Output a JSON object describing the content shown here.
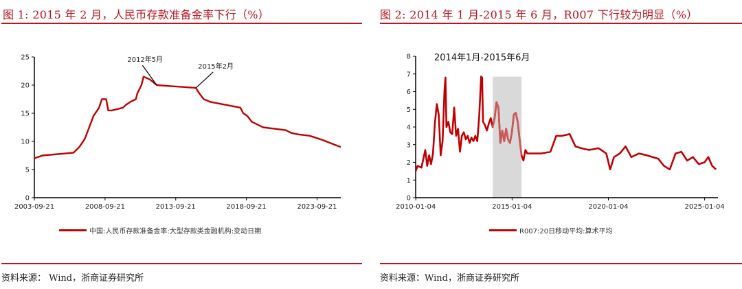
{
  "figure1": {
    "title": "图 1:  2015 年 2 月，人民币存款准备金率下行（%）",
    "source": "资料来源： Wind，浙商证券研究所",
    "legend": "中国:人民币存款准备金率:大型存款类金融机构:变动日期"
  },
  "figure2": {
    "title": "图 2:  2014 年 1 月-2015 年 6 月，R007 下行较为明显（%）",
    "source": "资料来源：Wind，浙商证券研究所",
    "legend": "R007:20日移动平均:算术平均"
  },
  "colors": {
    "accent": "#c0141c",
    "series": "#c00000",
    "highlight_band": "#d9d9d9",
    "highlighted_series": "#c85a5a"
  },
  "chart_data": [
    {
      "type": "line",
      "title": "2015 年 2 月，人民币存款准备金率下行（%）",
      "xlabel": "",
      "ylabel": "%",
      "ylim": [
        0,
        25
      ],
      "yticks": [
        0,
        5,
        10,
        15,
        20,
        25
      ],
      "xticks": [
        "2003-09-21",
        "2008-09-21",
        "2013-09-21",
        "2018-09-21",
        "2023-09-21"
      ],
      "xrange": [
        2003.72,
        2025.4
      ],
      "grid": false,
      "legend_position": "bottom",
      "annotations": [
        {
          "text": "2012年5月",
          "x": 2012.38,
          "y": 20.0,
          "label_x": 2010.3,
          "label_y": 24.5
        },
        {
          "text": "2015年2月",
          "x": 2015.15,
          "y": 19.5,
          "label_x": 2015.3,
          "label_y": 23.3
        }
      ],
      "series": [
        {
          "name": "中国:人民币存款准备金率:大型存款类金融机构:变动日期",
          "x": [
            2003.72,
            2004.3,
            2006.5,
            2006.9,
            2007.3,
            2007.6,
            2007.9,
            2008.3,
            2008.5,
            2008.8,
            2008.95,
            2009.2,
            2010.0,
            2010.2,
            2010.5,
            2010.9,
            2011.0,
            2011.3,
            2011.45,
            2011.9,
            2012.38,
            2015.15,
            2015.4,
            2015.7,
            2016.2,
            2018.3,
            2018.5,
            2018.8,
            2019.1,
            2019.9,
            2021.5,
            2021.9,
            2022.4,
            2023.2,
            2023.5,
            2024.1,
            2025.4
          ],
          "y": [
            7.0,
            7.5,
            8.0,
            9.0,
            10.5,
            12.5,
            14.5,
            16.0,
            17.5,
            17.5,
            15.5,
            15.5,
            16.0,
            16.5,
            17.0,
            17.5,
            18.5,
            20.0,
            21.5,
            21.0,
            20.0,
            19.5,
            18.5,
            17.5,
            17.0,
            16.0,
            15.0,
            14.5,
            13.5,
            12.5,
            12.0,
            11.5,
            11.25,
            11.0,
            10.75,
            10.25,
            9.0
          ]
        }
      ]
    },
    {
      "type": "line",
      "title": "2014 年 1 月-2015 年 6 月，R007 下行较为明显（%）",
      "subtitle": "2014年1月-2015年6月",
      "xlabel": "",
      "ylabel": "%",
      "ylim": [
        0,
        8
      ],
      "yticks": [
        0,
        1,
        2,
        3,
        4,
        5,
        6,
        7,
        8
      ],
      "xticks": [
        "2010-01-04",
        "2015-01-04",
        "2020-01-04",
        "2025-01-04"
      ],
      "xrange": [
        2010.0,
        2025.7
      ],
      "grid": false,
      "legend_position": "bottom",
      "highlight_band": {
        "x_start": 2014.0,
        "x_end": 2015.5,
        "y_top": 6.85
      },
      "series": [
        {
          "name": "R007:20日移动平均:算术平均",
          "x": [
            2010.0,
            2010.1,
            2010.3,
            2010.5,
            2010.6,
            2010.7,
            2010.8,
            2010.9,
            2011.0,
            2011.1,
            2011.2,
            2011.3,
            2011.4,
            2011.5,
            2011.55,
            2011.6,
            2011.7,
            2011.8,
            2011.9,
            2012.0,
            2012.1,
            2012.2,
            2012.3,
            2012.4,
            2012.5,
            2012.6,
            2012.7,
            2012.8,
            2012.9,
            2013.0,
            2013.1,
            2013.2,
            2013.3,
            2013.4,
            2013.45,
            2013.5,
            2013.6,
            2013.7,
            2013.8,
            2013.9,
            2014.0,
            2014.1,
            2014.2,
            2014.3,
            2014.4,
            2014.5,
            2014.6,
            2014.7,
            2014.8,
            2014.9,
            2015.0,
            2015.1,
            2015.2,
            2015.3,
            2015.4,
            2015.5,
            2015.6,
            2015.7,
            2015.8,
            2016.0,
            2016.5,
            2017.0,
            2017.3,
            2017.6,
            2018.0,
            2018.3,
            2018.6,
            2019.0,
            2019.5,
            2019.9,
            2020.1,
            2020.3,
            2020.6,
            2020.9,
            2021.2,
            2021.6,
            2022.0,
            2022.3,
            2022.6,
            2022.9,
            2023.2,
            2023.5,
            2023.8,
            2024.1,
            2024.4,
            2024.7,
            2025.0,
            2025.2,
            2025.4,
            2025.6
          ],
          "y": [
            1.5,
            1.8,
            1.7,
            2.7,
            1.8,
            2.4,
            1.9,
            2.5,
            4.2,
            5.3,
            4.7,
            2.4,
            3.2,
            6.1,
            6.8,
            4.0,
            4.3,
            3.7,
            3.6,
            5.1,
            3.5,
            3.9,
            2.6,
            3.5,
            3.7,
            3.3,
            3.5,
            3.1,
            3.4,
            3.2,
            3.5,
            3.2,
            4.6,
            6.85,
            6.8,
            4.3,
            4.1,
            3.8,
            4.2,
            4.5,
            4.0,
            4.5,
            5.4,
            5.1,
            3.1,
            3.8,
            3.2,
            3.9,
            3.3,
            3.1,
            3.7,
            4.7,
            4.8,
            4.3,
            3.3,
            2.4,
            2.1,
            2.7,
            2.5,
            2.5,
            2.5,
            2.6,
            3.5,
            3.5,
            3.6,
            2.9,
            2.8,
            2.7,
            2.8,
            2.5,
            1.6,
            2.3,
            2.5,
            2.9,
            2.3,
            2.5,
            2.4,
            2.3,
            2.2,
            1.8,
            1.6,
            2.5,
            2.6,
            2.1,
            2.3,
            1.9,
            2.0,
            2.3,
            1.8,
            1.6
          ]
        }
      ]
    }
  ]
}
